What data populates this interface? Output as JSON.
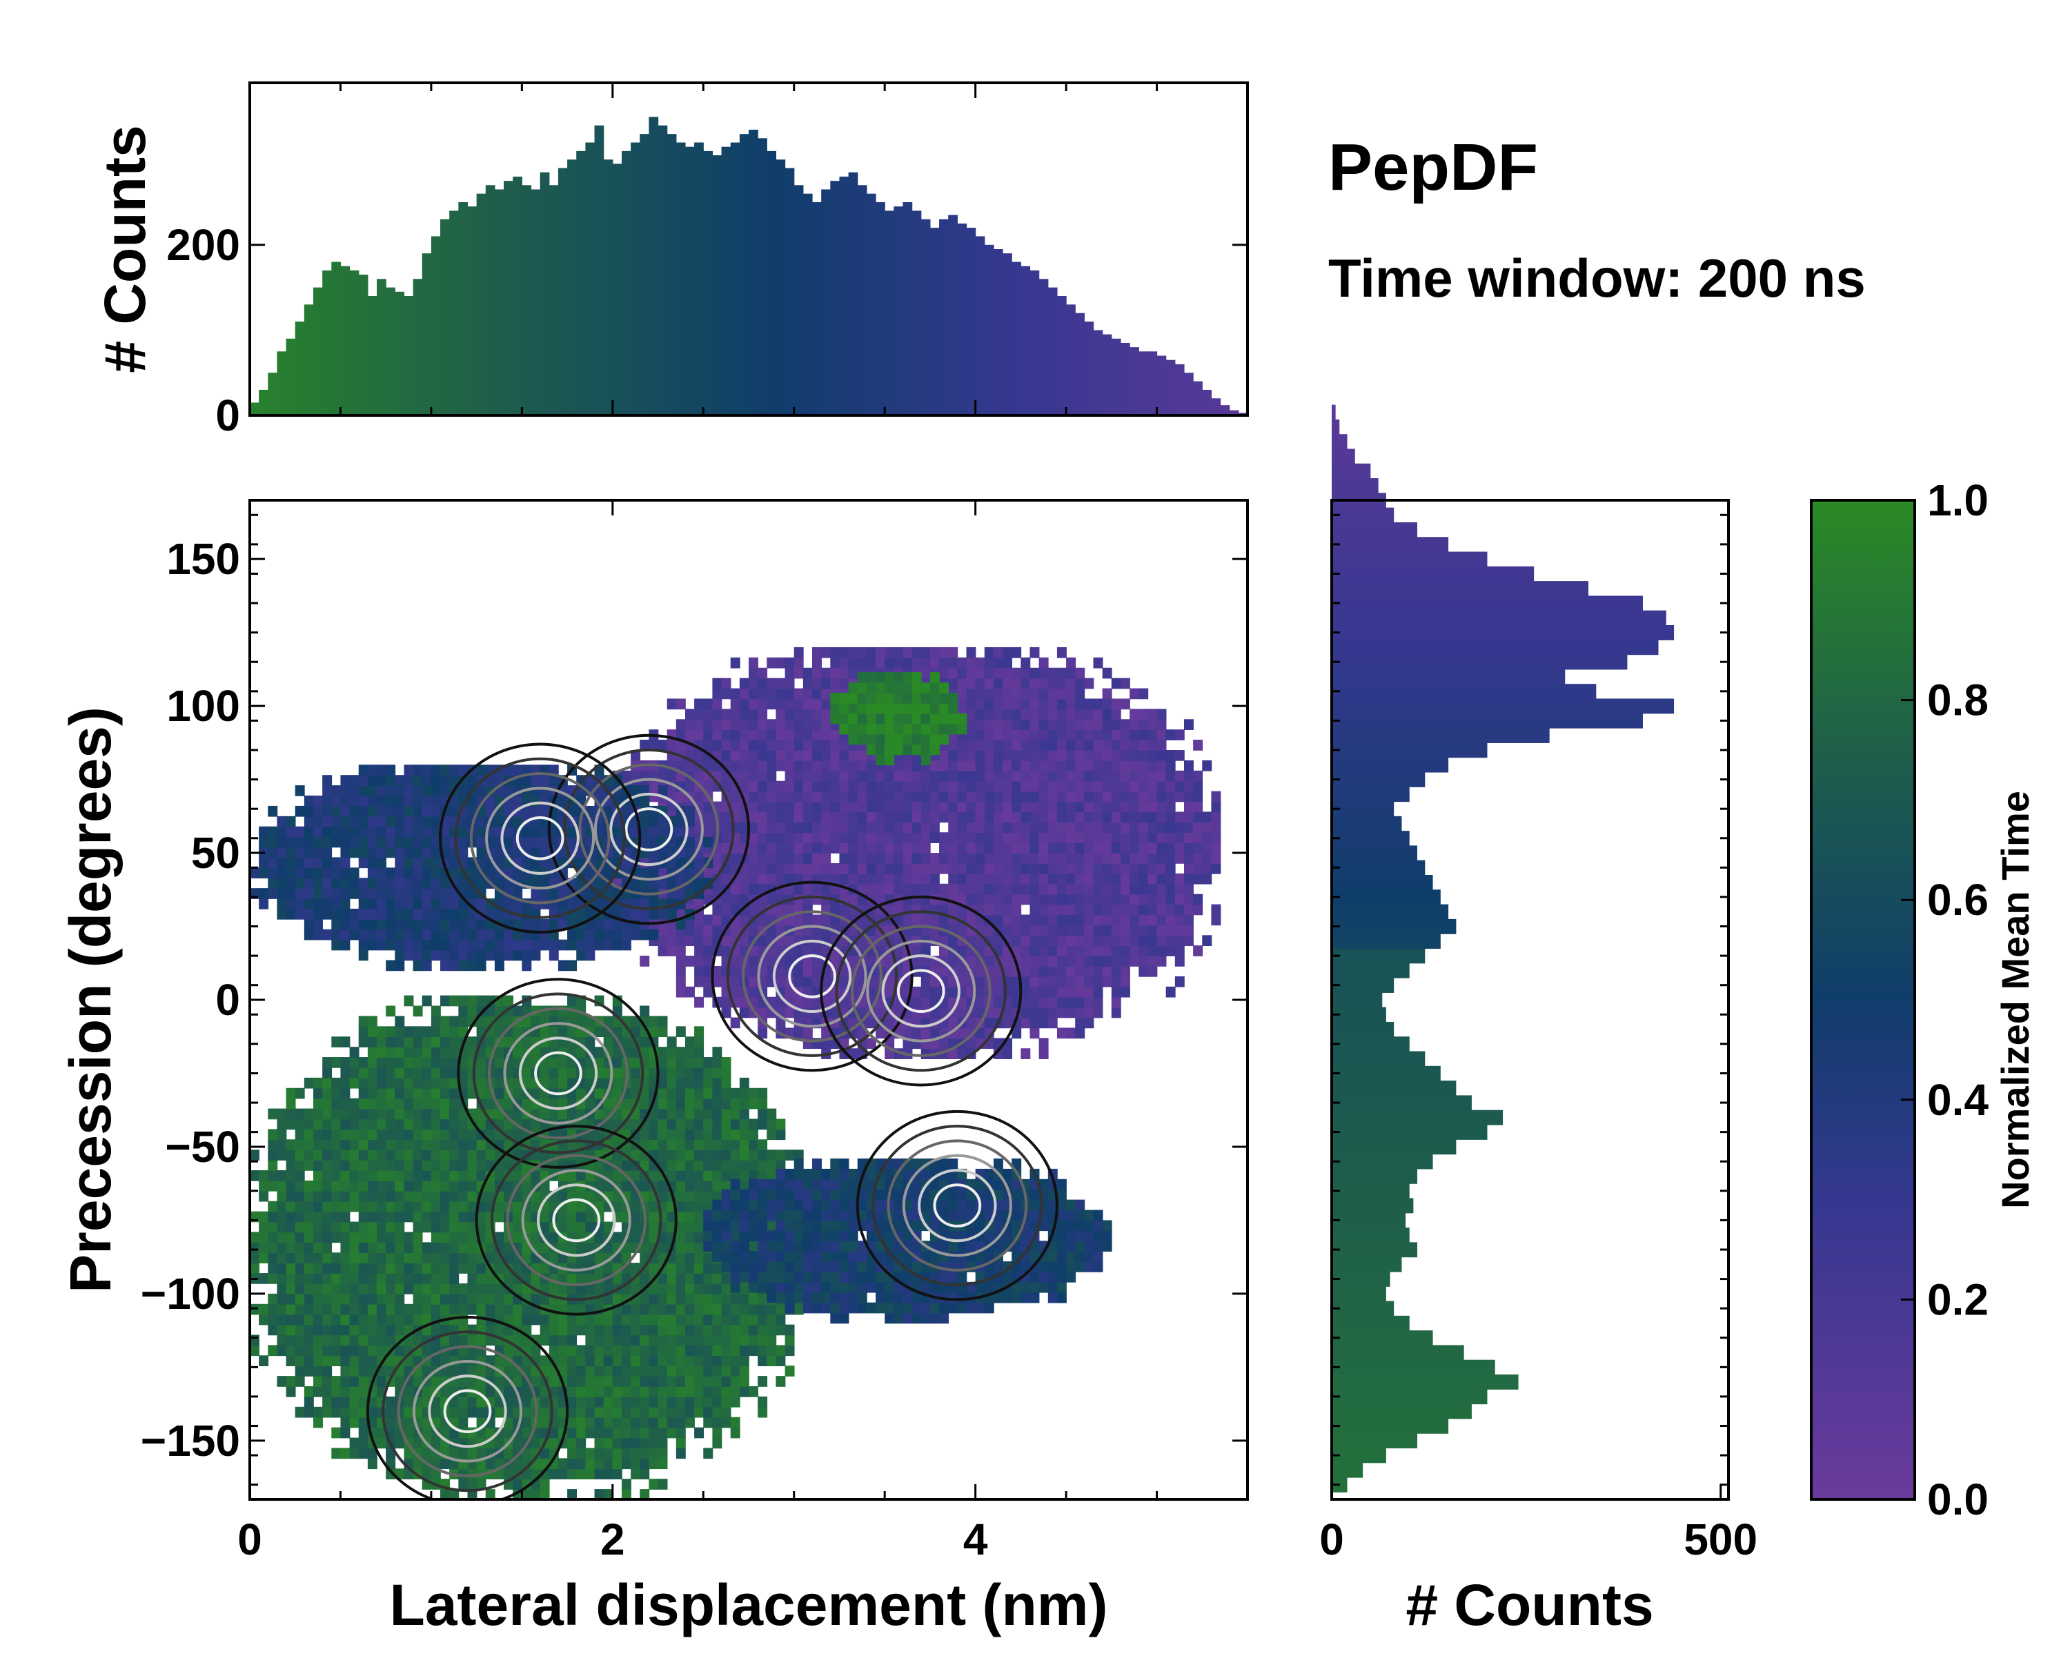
{
  "title": "PepDF",
  "subtitle": "Time window: 200 ns",
  "colors": {
    "low": "#6a3a9c",
    "mid": "#103d6b",
    "high": "#2a8a25",
    "background": "#ffffff"
  },
  "chart_data": [
    {
      "id": "top-histogram",
      "type": "bar",
      "title": "",
      "xlabel": "",
      "ylabel": "# Counts",
      "xlim": [
        0,
        5.5
      ],
      "ylim": [
        0,
        390
      ],
      "yticks": [
        0,
        200
      ],
      "yticklabels": [
        "0",
        "200"
      ],
      "bin_width": 0.05,
      "x_start": 0.0,
      "values": [
        15,
        30,
        50,
        75,
        90,
        110,
        130,
        150,
        170,
        180,
        175,
        170,
        165,
        140,
        160,
        150,
        145,
        140,
        160,
        190,
        210,
        230,
        240,
        250,
        245,
        260,
        270,
        265,
        275,
        280,
        270,
        265,
        285,
        270,
        290,
        300,
        310,
        320,
        340,
        300,
        295,
        310,
        320,
        330,
        350,
        340,
        330,
        320,
        315,
        320,
        310,
        305,
        315,
        320,
        330,
        335,
        325,
        310,
        300,
        290,
        270,
        260,
        250,
        265,
        275,
        280,
        285,
        270,
        260,
        250,
        240,
        245,
        250,
        240,
        230,
        220,
        230,
        235,
        225,
        220,
        210,
        200,
        195,
        190,
        180,
        175,
        170,
        160,
        150,
        140,
        130,
        120,
        110,
        100,
        95,
        90,
        85,
        80,
        75,
        75,
        70,
        65,
        60,
        50,
        40,
        30,
        20,
        12,
        6,
        3
      ],
      "colorscale_values": "normalized mean time per bin, green (1.0) at left to purple (0.0) at right"
    },
    {
      "id": "heatmap",
      "type": "heatmap",
      "title": "",
      "xlabel": "Lateral displacement (nm)",
      "ylabel": "Precession (degrees)",
      "xlim": [
        0,
        5.5
      ],
      "ylim": [
        -170,
        170
      ],
      "xticks": [
        0,
        2,
        4
      ],
      "xticklabels": [
        "0",
        "2",
        "4"
      ],
      "yticks": [
        150,
        100,
        50,
        0,
        -50,
        -100,
        -150
      ],
      "yticklabels": [
        "150",
        "100",
        "50",
        "0",
        "−50",
        "−100",
        "−150"
      ],
      "regions": [
        {
          "name": "upper-right lobe",
          "x_range": [
            2.0,
            5.3
          ],
          "y_range": [
            -20,
            120
          ],
          "mean_time": 0.15
        },
        {
          "name": "upper-left band",
          "x_range": [
            0.0,
            2.5
          ],
          "y_range": [
            10,
            80
          ],
          "mean_time": 0.45
        },
        {
          "name": "top-right green patch",
          "x_range": [
            3.2,
            3.9
          ],
          "y_range": [
            80,
            110
          ],
          "mean_time": 0.95
        },
        {
          "name": "lower-left lobe",
          "x_range": [
            0.0,
            3.0
          ],
          "y_range": [
            -170,
            0
          ],
          "mean_time": 0.8
        },
        {
          "name": "lower-right tail",
          "x_range": [
            2.5,
            4.7
          ],
          "y_range": [
            -110,
            -55
          ],
          "mean_time": 0.5
        }
      ],
      "contour_peaks": [
        {
          "x": 2.2,
          "y": 58
        },
        {
          "x": 1.6,
          "y": 55
        },
        {
          "x": 3.1,
          "y": 8
        },
        {
          "x": 3.7,
          "y": 3
        },
        {
          "x": 1.7,
          "y": -25
        },
        {
          "x": 1.8,
          "y": -75
        },
        {
          "x": 1.2,
          "y": -140
        },
        {
          "x": 3.9,
          "y": -70
        }
      ]
    },
    {
      "id": "right-histogram",
      "type": "bar",
      "orientation": "horizontal",
      "title": "",
      "xlabel": "# Counts",
      "ylabel": "",
      "xlim": [
        0,
        510
      ],
      "ylim": [
        -170,
        170
      ],
      "xticks": [
        0,
        500
      ],
      "xticklabels": [
        "0",
        "500"
      ],
      "bin_width_deg": 5,
      "y_start": -167.5,
      "values": [
        20,
        40,
        70,
        110,
        150,
        180,
        200,
        240,
        210,
        170,
        130,
        100,
        80,
        70,
        75,
        90,
        110,
        100,
        95,
        105,
        100,
        110,
        130,
        160,
        200,
        220,
        180,
        160,
        140,
        120,
        100,
        80,
        70,
        65,
        80,
        100,
        120,
        140,
        160,
        150,
        140,
        130,
        120,
        110,
        100,
        90,
        80,
        100,
        120,
        150,
        200,
        280,
        400,
        440,
        340,
        300,
        380,
        420,
        440,
        430,
        400,
        330,
        260,
        200,
        150,
        110,
        80,
        70,
        60,
        50,
        30,
        20,
        10,
        5
      ]
    },
    {
      "id": "colorbar",
      "type": "colorbar",
      "label": "Normalized Mean Time",
      "range": [
        0.0,
        1.0
      ],
      "ticks": [
        0.0,
        0.2,
        0.4,
        0.6,
        0.8,
        1.0
      ],
      "ticklabels": [
        "0.0",
        "0.2",
        "0.4",
        "0.6",
        "0.8",
        "1.0"
      ]
    }
  ]
}
